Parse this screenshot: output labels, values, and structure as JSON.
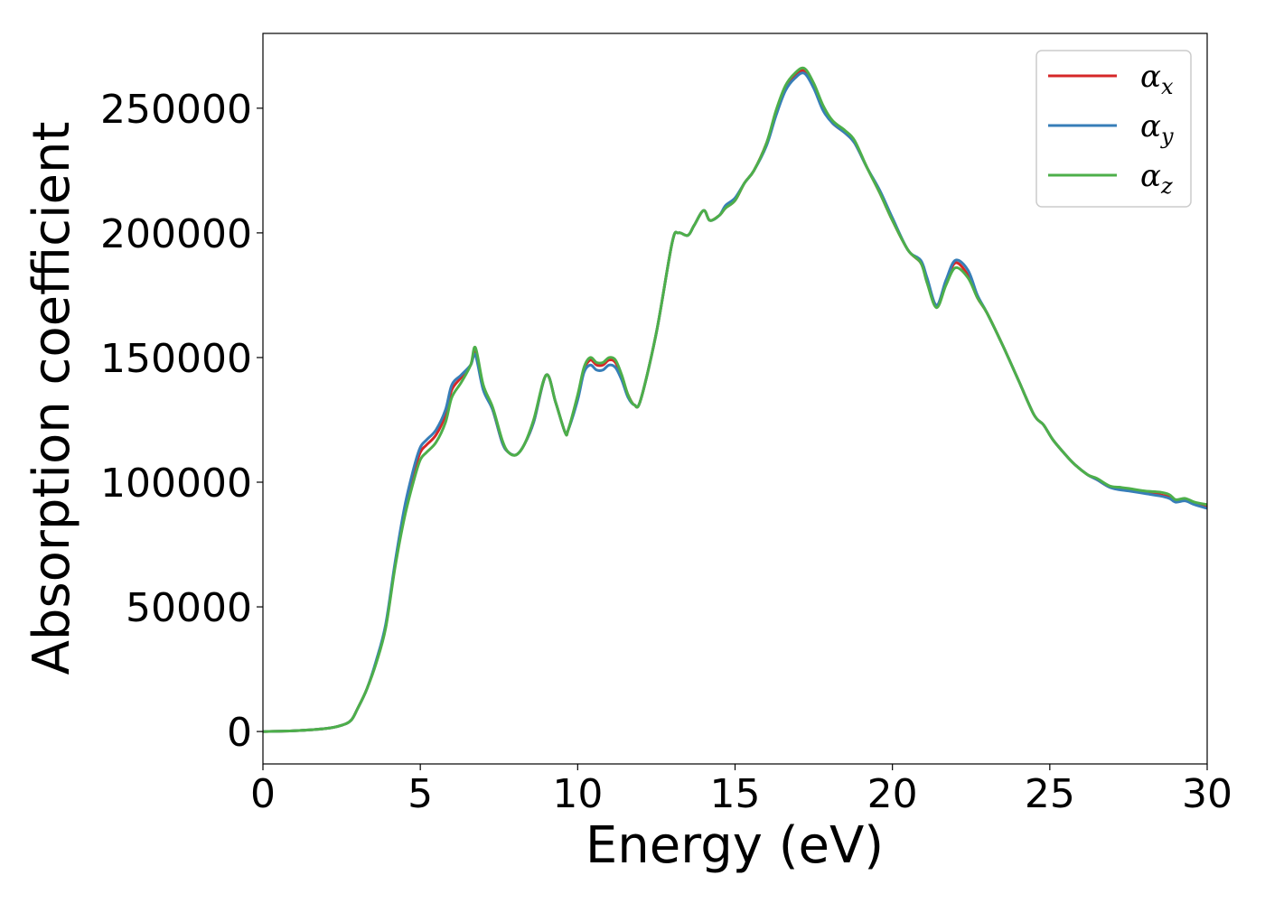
{
  "chart_data": {
    "type": "line",
    "title": "",
    "xlabel": "Energy (eV)",
    "ylabel": "Absorption coefficient",
    "xlim": [
      0,
      30
    ],
    "ylim": [
      -13000,
      280000
    ],
    "grid": false,
    "legend_position": "top-right",
    "xticks": [
      0,
      5,
      10,
      15,
      20,
      25,
      30
    ],
    "xtick_labels": [
      "0",
      "5",
      "10",
      "15",
      "20",
      "25",
      "30"
    ],
    "yticks": [
      0,
      50000,
      100000,
      150000,
      200000,
      250000
    ],
    "ytick_labels": [
      "0",
      "50000",
      "100000",
      "150000",
      "200000",
      "250000"
    ],
    "series": [
      {
        "name": "αx",
        "symbol": "α",
        "subscript": "x",
        "color": "#d62728",
        "x": [
          0,
          1,
          2,
          2.5,
          2.8,
          3.0,
          3.3,
          3.6,
          3.9,
          4.2,
          4.5,
          4.8,
          5.0,
          5.2,
          5.5,
          5.8,
          6.0,
          6.3,
          6.6,
          6.75,
          7.0,
          7.3,
          7.6,
          7.8,
          8.05,
          8.3,
          8.6,
          9.0,
          9.3,
          9.6,
          9.7,
          10.0,
          10.2,
          10.4,
          10.6,
          10.8,
          11.0,
          11.2,
          11.4,
          11.6,
          11.8,
          12.0,
          12.5,
          13.0,
          13.2,
          13.5,
          13.7,
          14.0,
          14.2,
          14.5,
          14.7,
          15.0,
          15.3,
          15.6,
          16.0,
          16.3,
          16.6,
          16.9,
          17.2,
          17.5,
          17.8,
          18.1,
          18.5,
          18.8,
          19.2,
          19.6,
          20.0,
          20.5,
          20.9,
          21.1,
          21.4,
          21.7,
          22.0,
          22.4,
          22.7,
          23.0,
          23.5,
          24.0,
          24.5,
          24.8,
          25.1,
          25.5,
          25.8,
          26.2,
          26.5,
          26.9,
          27.2,
          27.5,
          28.0,
          28.5,
          28.8,
          29.0,
          29.3,
          29.6,
          30.0
        ],
        "y": [
          0,
          300,
          1200,
          2500,
          4500,
          9000,
          17000,
          28000,
          42000,
          67000,
          88000,
          104000,
          112000,
          115000,
          119000,
          127000,
          137000,
          142000,
          147000,
          152000,
          138000,
          129000,
          116000,
          112000,
          111000,
          115000,
          124000,
          143000,
          132000,
          120000,
          121000,
          134000,
          145000,
          149000,
          147000,
          147000,
          149000,
          148000,
          142000,
          135000,
          131000,
          133000,
          160000,
          196000,
          200000,
          199000,
          203000,
          209000,
          205000,
          207000,
          210000,
          213000,
          220000,
          225000,
          236000,
          248000,
          258000,
          263000,
          265000,
          259000,
          250000,
          244000,
          240000,
          236000,
          226000,
          216000,
          205000,
          193000,
          188000,
          181000,
          171000,
          180000,
          188000,
          183000,
          174000,
          168000,
          155000,
          141000,
          127000,
          123000,
          117000,
          111000,
          107000,
          103000,
          101000,
          98000,
          97500,
          97000,
          96000,
          95000,
          94000,
          92500,
          93000,
          91500,
          90000
        ]
      },
      {
        "name": "αy",
        "symbol": "α",
        "subscript": "y",
        "color": "#377eb8",
        "x": [
          0,
          1,
          2,
          2.5,
          2.8,
          3.0,
          3.3,
          3.6,
          3.9,
          4.2,
          4.5,
          4.8,
          5.0,
          5.2,
          5.5,
          5.8,
          6.0,
          6.3,
          6.6,
          6.75,
          7.0,
          7.3,
          7.6,
          7.8,
          8.05,
          8.3,
          8.6,
          9.0,
          9.3,
          9.6,
          9.7,
          10.0,
          10.2,
          10.4,
          10.6,
          10.8,
          11.0,
          11.2,
          11.4,
          11.6,
          11.8,
          12.0,
          12.5,
          13.0,
          13.2,
          13.5,
          13.7,
          14.0,
          14.2,
          14.5,
          14.7,
          15.0,
          15.3,
          15.6,
          16.0,
          16.3,
          16.6,
          16.9,
          17.2,
          17.5,
          17.8,
          18.1,
          18.5,
          18.8,
          19.2,
          19.6,
          20.0,
          20.5,
          20.9,
          21.1,
          21.4,
          21.7,
          22.0,
          22.4,
          22.7,
          23.0,
          23.5,
          24.0,
          24.5,
          24.8,
          25.1,
          25.5,
          25.8,
          26.2,
          26.5,
          26.9,
          27.2,
          27.5,
          28.0,
          28.5,
          28.8,
          29.0,
          29.3,
          29.6,
          30.0
        ],
        "y": [
          0,
          300,
          1200,
          2500,
          4500,
          9000,
          17000,
          28500,
          43000,
          68000,
          90000,
          106000,
          114000,
          117000,
          121000,
          129000,
          139000,
          143000,
          147000,
          151000,
          137000,
          129000,
          116000,
          112000,
          111000,
          115000,
          124000,
          143000,
          132000,
          120000,
          121000,
          133000,
          144000,
          147000,
          145000,
          145000,
          147000,
          146000,
          141000,
          134000,
          131000,
          133000,
          160000,
          196000,
          200000,
          199000,
          203000,
          209000,
          205000,
          207000,
          211000,
          214000,
          220000,
          225000,
          235000,
          247000,
          257000,
          262000,
          264000,
          258000,
          249000,
          244000,
          240000,
          236000,
          226000,
          217000,
          206000,
          193000,
          189000,
          182000,
          171000,
          181000,
          189000,
          185000,
          175000,
          168000,
          155000,
          141000,
          127000,
          123000,
          117000,
          111000,
          107000,
          103000,
          101000,
          98000,
          97000,
          96500,
          95500,
          94500,
          93500,
          92000,
          92500,
          91000,
          89500
        ]
      },
      {
        "name": "αz",
        "symbol": "α",
        "subscript": "z",
        "color": "#4daf4a",
        "x": [
          0,
          1,
          2,
          2.5,
          2.8,
          3.0,
          3.3,
          3.6,
          3.9,
          4.2,
          4.5,
          4.8,
          5.0,
          5.2,
          5.5,
          5.8,
          6.0,
          6.3,
          6.6,
          6.75,
          7.0,
          7.3,
          7.6,
          7.8,
          8.05,
          8.3,
          8.6,
          9.0,
          9.3,
          9.6,
          9.7,
          10.0,
          10.2,
          10.4,
          10.6,
          10.8,
          11.0,
          11.2,
          11.4,
          11.6,
          11.8,
          12.0,
          12.5,
          13.0,
          13.2,
          13.5,
          13.7,
          14.0,
          14.2,
          14.5,
          14.7,
          15.0,
          15.3,
          15.6,
          16.0,
          16.3,
          16.6,
          16.9,
          17.2,
          17.5,
          17.8,
          18.1,
          18.5,
          18.8,
          19.2,
          19.6,
          20.0,
          20.5,
          20.9,
          21.1,
          21.4,
          21.7,
          22.0,
          22.4,
          22.7,
          23.0,
          23.5,
          24.0,
          24.5,
          24.8,
          25.1,
          25.5,
          25.8,
          26.2,
          26.5,
          26.9,
          27.2,
          27.5,
          28.0,
          28.5,
          28.8,
          29.0,
          29.3,
          29.6,
          30.0
        ],
        "y": [
          0,
          300,
          1200,
          2500,
          4500,
          9000,
          17000,
          27500,
          41500,
          66000,
          86000,
          101000,
          109000,
          112000,
          116000,
          124000,
          134000,
          140000,
          147000,
          154000,
          139000,
          130000,
          117000,
          112000,
          111000,
          115000,
          125000,
          143000,
          132000,
          120000,
          121000,
          135000,
          146000,
          150000,
          148000,
          148000,
          150000,
          149000,
          143000,
          135000,
          131000,
          133000,
          160000,
          196000,
          200000,
          199000,
          203000,
          209000,
          205000,
          207000,
          210000,
          213000,
          220000,
          225000,
          236000,
          249000,
          259000,
          264000,
          266000,
          260000,
          251000,
          245000,
          241000,
          237000,
          226000,
          216000,
          205000,
          193000,
          188000,
          180000,
          170000,
          179000,
          186000,
          182000,
          174000,
          168000,
          155000,
          141000,
          127000,
          123000,
          117000,
          111000,
          107000,
          103000,
          101500,
          98500,
          98000,
          97500,
          96500,
          96000,
          95000,
          93000,
          93500,
          92000,
          91000
        ]
      }
    ]
  }
}
